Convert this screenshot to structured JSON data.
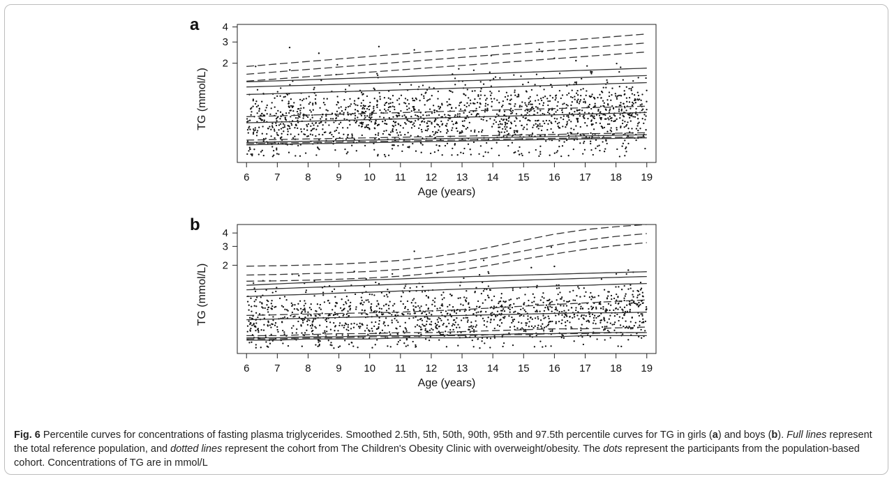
{
  "caption": {
    "fig_label": "Fig. 6",
    "text_1": " Percentile curves for concentrations of fasting plasma triglycerides. Smoothed 2.5th, 5th, 50th, 90th, 95th and 97.5th percentile curves for TG in girls (",
    "panel_a": "a",
    "text_2": ") and boys (",
    "panel_b": "b",
    "text_3": "). ",
    "full_lines": "Full lines",
    "text_4": " represent the total reference population, and ",
    "dotted_lines": "dotted lines",
    "text_5": " represent the cohort from The Children's Obesity Clinic with overweight/obesity. The ",
    "dots": "dots",
    "text_6": " represent the participants from the population-based cohort. Concentrations of TG are in mmol/L"
  },
  "chart_data": [
    {
      "type": "line",
      "panel": "a",
      "xlabel": "Age (years)",
      "ylabel": "TG (mmol/L)",
      "xlim": [
        5.7,
        19.3
      ],
      "ylim": [
        0.3,
        4.2
      ],
      "y_scale": "log",
      "x_ticks": [
        6,
        7,
        8,
        9,
        10,
        11,
        12,
        13,
        14,
        15,
        16,
        17,
        18,
        19
      ],
      "y_ticks": [
        2,
        3,
        4
      ],
      "x": [
        6,
        19
      ],
      "series": [
        {
          "style": "solid",
          "values": [
            0.42,
            0.48
          ]
        },
        {
          "style": "solid",
          "values": [
            0.44,
            0.51
          ]
        },
        {
          "style": "solid",
          "values": [
            0.64,
            0.78
          ]
        },
        {
          "style": "solid",
          "values": [
            1.1,
            1.38
          ]
        },
        {
          "style": "solid",
          "values": [
            1.27,
            1.58
          ]
        },
        {
          "style": "solid",
          "values": [
            1.4,
            1.82
          ]
        },
        {
          "style": "dashed",
          "values": [
            0.43,
            0.49
          ]
        },
        {
          "style": "dashed",
          "values": [
            0.46,
            0.53
          ]
        },
        {
          "style": "dashed",
          "values": [
            0.72,
            0.88
          ]
        },
        {
          "style": "dashed",
          "values": [
            1.42,
            2.48
          ]
        },
        {
          "style": "dashed",
          "values": [
            1.62,
            2.95
          ]
        },
        {
          "style": "dashed",
          "values": [
            1.88,
            3.5
          ]
        }
      ],
      "scatter": {
        "count": 1600,
        "median_start": 0.64,
        "median_end": 0.78,
        "outliers": [
          [
            7.4,
            2.7
          ],
          [
            8.35,
            2.42
          ],
          [
            10.3,
            2.75
          ],
          [
            11.45,
            2.58
          ],
          [
            16.0,
            2.2
          ],
          [
            18.15,
            1.85
          ],
          [
            15.6,
            2.5
          ],
          [
            16.7,
            2.1
          ]
        ]
      }
    },
    {
      "type": "line",
      "panel": "b",
      "xlabel": "Age (years)",
      "ylabel": "TG (mmol/L)",
      "xlim": [
        5.7,
        19.3
      ],
      "ylim": [
        0.3,
        4.8
      ],
      "y_scale": "log",
      "x_ticks": [
        6,
        7,
        8,
        9,
        10,
        11,
        12,
        13,
        14,
        15,
        16,
        17,
        18,
        19
      ],
      "y_ticks": [
        2,
        3,
        4
      ],
      "x": [
        6,
        7,
        8,
        9,
        10,
        11,
        12,
        13,
        14,
        15,
        16,
        17,
        18,
        19
      ],
      "series": [
        {
          "style": "solid",
          "values": [
            0.4,
            0.4,
            0.41,
            0.41,
            0.41,
            0.42,
            0.42,
            0.42,
            0.43,
            0.43,
            0.43,
            0.44,
            0.44,
            0.44
          ]
        },
        {
          "style": "solid",
          "values": [
            0.42,
            0.42,
            0.43,
            0.43,
            0.44,
            0.44,
            0.44,
            0.45,
            0.45,
            0.46,
            0.46,
            0.47,
            0.47,
            0.47
          ]
        },
        {
          "style": "solid",
          "values": [
            0.62,
            0.63,
            0.64,
            0.65,
            0.66,
            0.67,
            0.67,
            0.68,
            0.69,
            0.7,
            0.71,
            0.72,
            0.72,
            0.73
          ]
        },
        {
          "style": "solid",
          "values": [
            1.02,
            1.05,
            1.07,
            1.1,
            1.12,
            1.15,
            1.17,
            1.2,
            1.22,
            1.25,
            1.28,
            1.3,
            1.33,
            1.35
          ]
        },
        {
          "style": "solid",
          "values": [
            1.18,
            1.21,
            1.24,
            1.27,
            1.3,
            1.33,
            1.36,
            1.39,
            1.42,
            1.45,
            1.48,
            1.51,
            1.54,
            1.57
          ]
        },
        {
          "style": "solid",
          "values": [
            1.3,
            1.34,
            1.38,
            1.42,
            1.46,
            1.49,
            1.53,
            1.56,
            1.59,
            1.62,
            1.65,
            1.68,
            1.71,
            1.74
          ]
        },
        {
          "style": "dashed",
          "values": [
            0.41,
            0.41,
            0.42,
            0.42,
            0.43,
            0.43,
            0.44,
            0.44,
            0.45,
            0.45,
            0.46,
            0.46,
            0.47,
            0.47
          ]
        },
        {
          "style": "dashed",
          "values": [
            0.44,
            0.44,
            0.45,
            0.46,
            0.46,
            0.47,
            0.47,
            0.48,
            0.49,
            0.5,
            0.51,
            0.51,
            0.52,
            0.53
          ]
        },
        {
          "style": "dashed",
          "values": [
            0.68,
            0.69,
            0.7,
            0.71,
            0.72,
            0.73,
            0.75,
            0.77,
            0.8,
            0.83,
            0.86,
            0.89,
            0.92,
            0.95
          ]
        },
        {
          "style": "dashed",
          "values": [
            1.42,
            1.43,
            1.45,
            1.48,
            1.52,
            1.58,
            1.68,
            1.82,
            2.02,
            2.28,
            2.55,
            2.82,
            3.05,
            3.25
          ]
        },
        {
          "style": "dashed",
          "values": [
            1.62,
            1.64,
            1.67,
            1.7,
            1.75,
            1.83,
            1.96,
            2.14,
            2.4,
            2.72,
            3.08,
            3.42,
            3.72,
            3.95
          ]
        },
        {
          "style": "dashed",
          "values": [
            1.96,
            1.98,
            2.01,
            2.05,
            2.12,
            2.22,
            2.38,
            2.62,
            2.98,
            3.42,
            3.9,
            4.3,
            4.58,
            4.8
          ]
        }
      ],
      "scatter": {
        "count": 1300,
        "median_start": 0.62,
        "median_end": 0.73,
        "outliers": [
          [
            11.45,
            2.7
          ],
          [
            15.25,
            1.9
          ],
          [
            16.0,
            1.95
          ],
          [
            15.9,
            2.95
          ],
          [
            18.4,
            1.8
          ],
          [
            9.5,
            1.75
          ],
          [
            7.7,
            1.6
          ],
          [
            12.2,
            1.7
          ]
        ]
      }
    }
  ]
}
